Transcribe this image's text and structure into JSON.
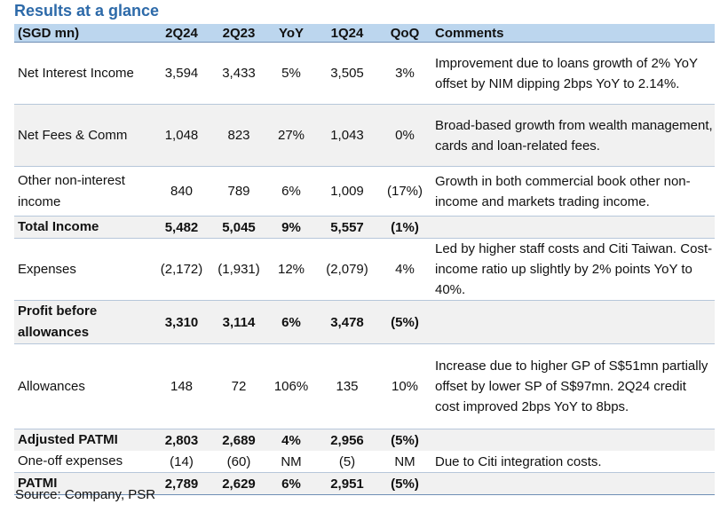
{
  "title": "Results at a glance",
  "headers": [
    "(SGD mn)",
    "2Q24",
    "2Q23",
    "YoY",
    "1Q24",
    "QoQ",
    "Comments"
  ],
  "rows": [
    {
      "label": "Net Interest Income",
      "v": [
        "3,594",
        "3,433",
        "5%",
        "3,505",
        "3%"
      ],
      "comment": "Improvement due to loans growth of 2% YoY offset by NIM dipping 2bps YoY to 2.14%."
    },
    {
      "label": "Net Fees & Comm",
      "v": [
        "1,048",
        "823",
        "27%",
        "1,043",
        "0%"
      ],
      "comment": "Broad-based growth from wealth management, cards and loan-related fees."
    },
    {
      "label": "Other non-interest income",
      "v": [
        "840",
        "789",
        "6%",
        "1,009",
        "(17%)"
      ],
      "comment": "Growth in both commercial book other non-income and markets trading income."
    },
    {
      "label": "Total Income",
      "v": [
        "5,482",
        "5,045",
        "9%",
        "5,557",
        "(1%)"
      ],
      "comment": ""
    },
    {
      "label": "Expenses",
      "v": [
        "(2,172)",
        "(1,931)",
        "12%",
        "(2,079)",
        "4%"
      ],
      "comment": "Led by higher staff costs and Citi Taiwan. Cost-income ratio up slightly by 2% points YoY to 40%."
    },
    {
      "label": "Profit before allowances",
      "v": [
        "3,310",
        "3,114",
        "6%",
        "3,478",
        "(5%)"
      ],
      "comment": ""
    },
    {
      "label": "Allowances",
      "v": [
        "148",
        "72",
        "106%",
        "135",
        "10%"
      ],
      "comment": "Increase due to higher GP of S$51mn partially offset by lower SP of S$97mn. 2Q24 credit cost improved 2bps YoY to 8bps."
    },
    {
      "label": "Adjusted PATMI",
      "v": [
        "2,803",
        "2,689",
        "4%",
        "2,956",
        "(5%)"
      ],
      "comment": ""
    },
    {
      "label": "One-off expenses",
      "v": [
        "(14)",
        "(60)",
        "NM",
        "(5)",
        "NM"
      ],
      "comment": "Due to Citi integration costs."
    },
    {
      "label": "PATMI",
      "v": [
        "2,789",
        "2,629",
        "6%",
        "2,951",
        "(5%)"
      ],
      "comment": ""
    }
  ],
  "source": "Source: Company, PSR"
}
